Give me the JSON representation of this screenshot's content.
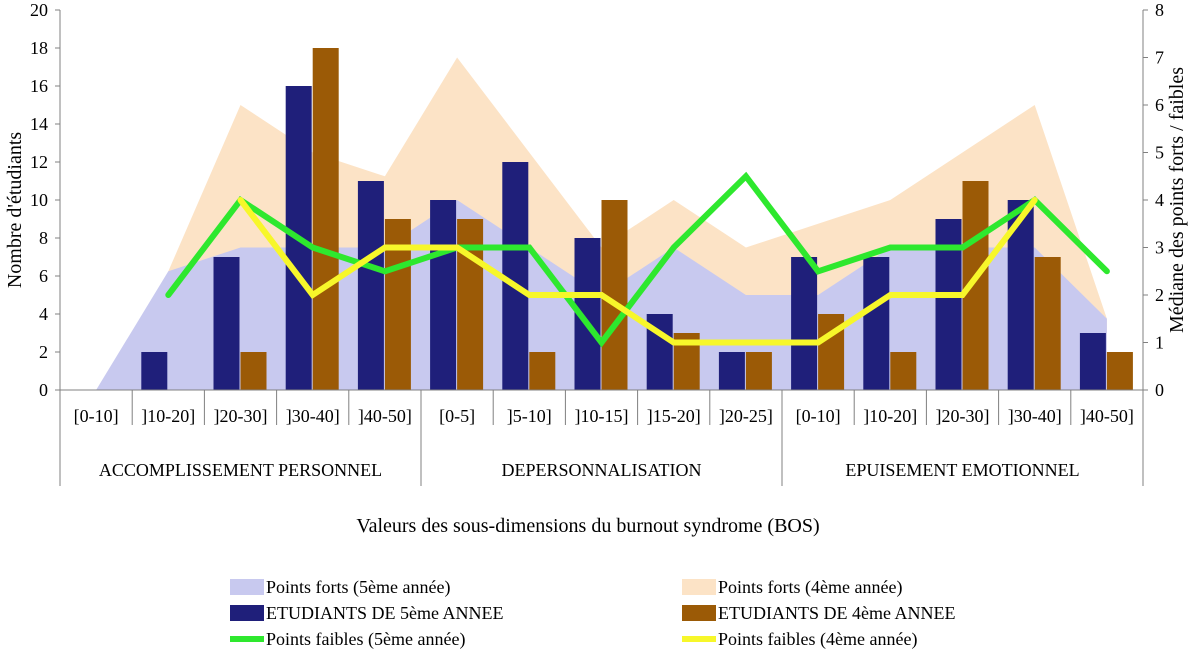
{
  "chart_data": {
    "type": "bar",
    "title": "",
    "xlabel": "Valeurs des sous-dimensions du burnout syndrome (BOS)",
    "ylabel": "Nombre d'étudiants",
    "y2label": "Médiane des points forts / faibles",
    "ylim": [
      0,
      20
    ],
    "yticks": [
      "0",
      "2",
      "4",
      "6",
      "8",
      "10",
      "12",
      "14",
      "16",
      "18",
      "20"
    ],
    "y2lim": [
      0,
      8
    ],
    "y2ticks": [
      "0",
      "1",
      "2",
      "3",
      "4",
      "5",
      "6",
      "7",
      "8"
    ],
    "grid": false,
    "legend_position": "bottom",
    "categories": [
      "[0-10]",
      "]10-20]",
      "]20-30]",
      "]30-40]",
      "]40-50]",
      "[0-5]",
      "]5-10]",
      "]10-15]",
      "]15-20]",
      "]20-25]",
      "[0-10]",
      "]10-20]",
      "]20-30]",
      "]30-40]",
      "]40-50]"
    ],
    "groups": [
      {
        "label": "ACCOMPLISSEMENT PERSONNEL",
        "count": 5
      },
      {
        "label": "DEPERSONNALISATION",
        "count": 5
      },
      {
        "label": "EPUISEMENT EMOTIONNEL",
        "count": 5
      }
    ],
    "series": [
      {
        "name": "Points forts (4ème année)",
        "kind": "area",
        "axis": "right",
        "color": "#fce3c6",
        "values": [
          null,
          2.5,
          6,
          5,
          4.5,
          7,
          5,
          3,
          4,
          3,
          3.5,
          4,
          5,
          6,
          1.5
        ]
      },
      {
        "name": "Points forts (5ème année)",
        "kind": "area",
        "axis": "right",
        "color": "#c8c9ef",
        "values": [
          0,
          2.5,
          3,
          3,
          3,
          4,
          3,
          2,
          3,
          2,
          2,
          3,
          3,
          3,
          1.5
        ]
      },
      {
        "name": "ETUDIANTS DE 5ème ANNEE",
        "kind": "bar",
        "axis": "left",
        "color": "#1f1f7a",
        "values": [
          0,
          2,
          7,
          16,
          11,
          10,
          12,
          8,
          4,
          2,
          7,
          7,
          9,
          10,
          3
        ]
      },
      {
        "name": "ETUDIANTS DE 4ème ANNEE",
        "kind": "bar",
        "axis": "left",
        "color": "#9b5a06",
        "values": [
          0,
          0,
          2,
          18,
          9,
          9,
          2,
          10,
          3,
          2,
          4,
          2,
          11,
          7,
          2
        ]
      },
      {
        "name": "Points faibles (5ème année)",
        "kind": "line",
        "axis": "right",
        "color": "#2ee82e",
        "values": [
          null,
          2,
          4,
          3,
          2.5,
          3,
          3,
          1,
          3,
          4.5,
          2.5,
          3,
          3,
          4,
          2.5
        ]
      },
      {
        "name": "Points faibles (4ème année)",
        "kind": "line",
        "axis": "right",
        "color": "#f7f72a",
        "values": [
          null,
          null,
          4,
          2,
          3,
          3,
          2,
          2,
          1,
          1,
          1,
          2,
          2,
          4,
          null
        ]
      }
    ],
    "legend": [
      {
        "name": "Points forts (5ème année)",
        "swatch": "area",
        "color": "#c8c9ef"
      },
      {
        "name": "Points forts (4ème année)",
        "swatch": "area",
        "color": "#fce3c6"
      },
      {
        "name": "ETUDIANTS DE 5ème ANNEE",
        "swatch": "bar",
        "color": "#1f1f7a"
      },
      {
        "name": "ETUDIANTS DE 4ème ANNEE",
        "swatch": "bar",
        "color": "#9b5a06"
      },
      {
        "name": "Points faibles (5ème année)",
        "swatch": "line",
        "color": "#2ee82e"
      },
      {
        "name": "Points faibles (4ème année)",
        "swatch": "line",
        "color": "#f7f72a"
      }
    ]
  }
}
